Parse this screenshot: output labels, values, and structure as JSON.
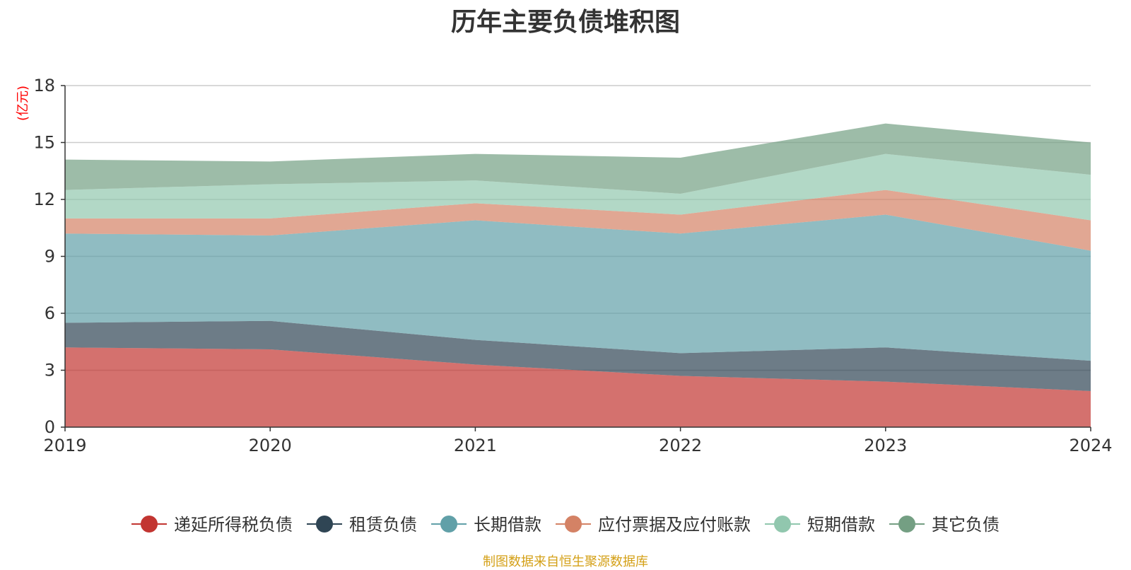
{
  "chart_data": {
    "type": "area",
    "stacked": true,
    "title": "历年主要负债堆积图",
    "ylabel": "(亿元)",
    "x": [
      "2019",
      "2020",
      "2021",
      "2022",
      "2023",
      "2024"
    ],
    "ylim": [
      0,
      18
    ],
    "yticks": [
      0,
      3,
      6,
      9,
      12,
      15,
      18
    ],
    "grid": true,
    "legend_position": "bottom",
    "series": [
      {
        "name": "递延所得税负债",
        "color": "#c23531",
        "values": [
          4.2,
          4.1,
          3.3,
          2.7,
          2.4,
          1.9
        ]
      },
      {
        "name": "租赁负债",
        "color": "#2f4554",
        "values": [
          1.3,
          1.5,
          1.3,
          1.2,
          1.8,
          1.6
        ]
      },
      {
        "name": "长期借款",
        "color": "#61a0a8",
        "values": [
          4.7,
          4.5,
          6.3,
          6.3,
          7.0,
          5.8
        ]
      },
      {
        "name": "应付票据及应付账款",
        "color": "#d48265",
        "values": [
          0.8,
          0.9,
          0.9,
          1.0,
          1.3,
          1.6
        ]
      },
      {
        "name": "短期借款",
        "color": "#91c7ae",
        "values": [
          1.5,
          1.8,
          1.2,
          1.1,
          1.9,
          2.4
        ]
      },
      {
        "name": "其它负债",
        "color": "#749f83",
        "values": [
          1.6,
          1.2,
          1.4,
          1.9,
          1.6,
          1.7
        ]
      }
    ]
  },
  "source_note": "制图数据来自恒生聚源数据库",
  "colors": {
    "title": "#333333",
    "ylabel": "#ff0000",
    "source_note": "#d4a017",
    "grid": "#cccccc",
    "axis": "#333333"
  }
}
